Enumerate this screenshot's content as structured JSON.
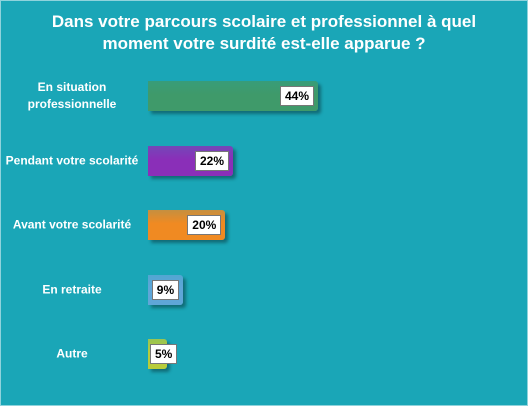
{
  "chart_data": {
    "type": "bar",
    "orientation": "horizontal",
    "title": "Dans votre parcours scolaire et professionnel à quel moment votre surdité est-elle apparue ?",
    "categories": [
      "En situation professionnelle",
      "Pendant votre scolarité",
      "Avant votre scolarité",
      "En retraite",
      "Autre"
    ],
    "values": [
      44,
      22,
      20,
      9,
      5
    ],
    "value_labels": [
      "44%",
      "22%",
      "20%",
      "9%",
      "5%"
    ],
    "colors": [
      "#3f9a6a",
      "#8a2fb8",
      "#f08a22",
      "#5fa6d8",
      "#b8cc3a"
    ]
  }
}
